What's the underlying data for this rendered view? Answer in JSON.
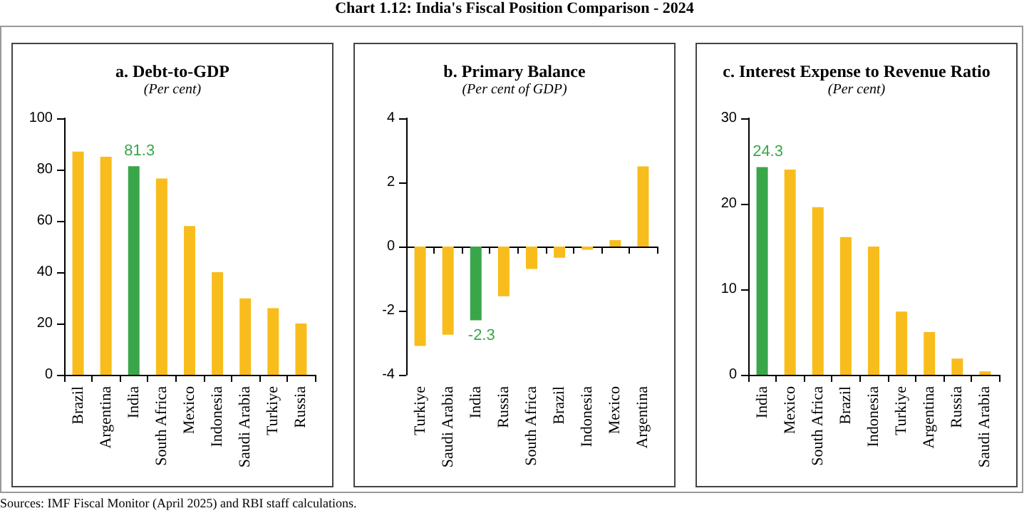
{
  "chart_data": [
    {
      "type": "bar",
      "title": "a. Debt-to-GDP",
      "subtitle": "(Per cent)",
      "annotations": [
        "Chart 1.12: India's Fiscal Position Comparison - 2024",
        "Sources: IMF Fiscal Monitor (April 2025) and RBI staff calculations."
      ],
      "categories": [
        "Brazil",
        "Argentina",
        "India",
        "South Africa",
        "Mexico",
        "Indonesia",
        "Saudi Arabia",
        "Turkiye",
        "Russia"
      ],
      "values": [
        87,
        85,
        81.3,
        76.5,
        58,
        40,
        29.8,
        26,
        20
      ],
      "colors": [
        "#f8bd1c",
        "#f8bd1c",
        "#3aa64a",
        "#f8bd1c",
        "#f8bd1c",
        "#f8bd1c",
        "#f8bd1c",
        "#f8bd1c",
        "#f8bd1c"
      ],
      "value_labels": [
        null,
        null,
        "81.3",
        null,
        null,
        null,
        null,
        null,
        null
      ],
      "ylim": [
        0,
        100
      ],
      "yticks": [
        0,
        20,
        40,
        60,
        80,
        100
      ]
    },
    {
      "type": "bar",
      "title": "b. Primary Balance",
      "subtitle": "(Per cent of GDP)",
      "categories": [
        "Turkiye",
        "Saudi Arabia",
        "India",
        "Russia",
        "South Africa",
        "Brazil",
        "Indonesia",
        "Mexico",
        "Argentina"
      ],
      "values": [
        -3.1,
        -2.75,
        -2.3,
        -1.55,
        -0.7,
        -0.35,
        -0.1,
        0.2,
        2.5
      ],
      "colors": [
        "#f8bd1c",
        "#f8bd1c",
        "#3aa64a",
        "#f8bd1c",
        "#f8bd1c",
        "#f8bd1c",
        "#f8bd1c",
        "#f8bd1c",
        "#f8bd1c"
      ],
      "value_labels": [
        null,
        null,
        "-2.3",
        null,
        null,
        null,
        null,
        null,
        null
      ],
      "ylim": [
        -4,
        4
      ],
      "yticks": [
        -4,
        -2,
        0,
        2,
        4
      ]
    },
    {
      "type": "bar",
      "title": "c. Interest Expense to Revenue Ratio",
      "subtitle": "(Per cent)",
      "categories": [
        "India",
        "Mexico",
        "South Africa",
        "Brazil",
        "Indonesia",
        "Turkiye",
        "Argentina",
        "Russia",
        "Saudi Arabia"
      ],
      "values": [
        24.3,
        24,
        19.6,
        16.1,
        15,
        7.4,
        5,
        1.9,
        0.4
      ],
      "colors": [
        "#3aa64a",
        "#f8bd1c",
        "#f8bd1c",
        "#f8bd1c",
        "#f8bd1c",
        "#f8bd1c",
        "#f8bd1c",
        "#f8bd1c",
        "#f8bd1c"
      ],
      "value_labels": [
        "24.3",
        null,
        null,
        null,
        null,
        null,
        null,
        null,
        null
      ],
      "ylim": [
        0,
        30
      ],
      "yticks": [
        0,
        10,
        20,
        30
      ]
    }
  ]
}
